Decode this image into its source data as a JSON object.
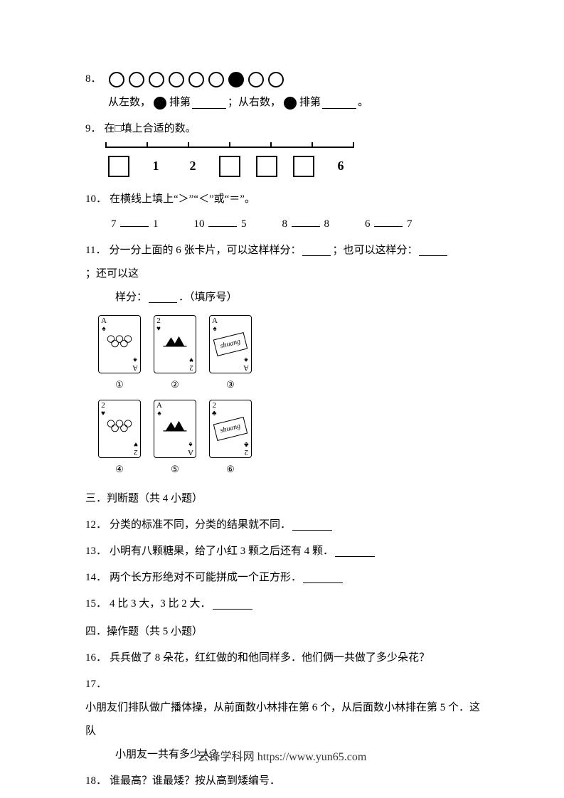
{
  "q8": {
    "num": "8．",
    "circles": [
      false,
      false,
      false,
      false,
      false,
      false,
      true,
      false,
      false
    ],
    "line2_a": "从左数，",
    "line2_b": " 排第 ",
    "line2_c": "；从右数，",
    "line2_d": " 排第 ",
    "line2_e": "。"
  },
  "q9": {
    "num": "9．",
    "text": "在□填上合适的数。",
    "cells": [
      {
        "type": "box",
        "val": ""
      },
      {
        "type": "label",
        "val": "1"
      },
      {
        "type": "label",
        "val": "2"
      },
      {
        "type": "box",
        "val": ""
      },
      {
        "type": "box",
        "val": ""
      },
      {
        "type": "box",
        "val": ""
      },
      {
        "type": "label",
        "val": "6"
      }
    ]
  },
  "q10": {
    "num": "10．",
    "text": "在横线上填上“＞”“＜”或“＝”。",
    "items": [
      {
        "l": "7",
        "r": "1"
      },
      {
        "l": "10",
        "r": "5"
      },
      {
        "l": "8",
        "r": "8"
      },
      {
        "l": "6",
        "r": "7"
      }
    ]
  },
  "q11": {
    "num": "11．",
    "line1_a": "分一分上面的 6 张卡片，可以这样样分：",
    "line1_b": "；也可以这样分：",
    "line1_c": "；还可以这",
    "line2_a": "样分：",
    "line2_b": "．（填序号）",
    "cards": [
      {
        "rank": "A",
        "suit": "♠",
        "kind": "rings",
        "idx": "①"
      },
      {
        "rank": "2",
        "suit": "♥",
        "kind": "mtn",
        "idx": "②"
      },
      {
        "rank": "A",
        "suit": "♠",
        "kind": "shuang",
        "idx": "③"
      },
      {
        "rank": "2",
        "suit": "♥",
        "kind": "rings",
        "idx": "④"
      },
      {
        "rank": "A",
        "suit": "♠",
        "kind": "mtn",
        "idx": "⑤"
      },
      {
        "rank": "2",
        "suit": "♣",
        "kind": "shuang",
        "idx": "⑥"
      }
    ],
    "shuang_label": "shuang"
  },
  "section3": {
    "title": "三．判断题（共 4 小题）"
  },
  "q12": {
    "num": "12．",
    "text": "分类的标准不同，分类的结果就不同．"
  },
  "q13": {
    "num": "13．",
    "text": "小明有八颗糖果，给了小红 3 颗之后还有 4 颗．"
  },
  "q14": {
    "num": "14．",
    "text": "两个长方形绝对不可能拼成一个正方形．"
  },
  "q15": {
    "num": "15．",
    "text": "4 比 3 大，3 比 2 大．"
  },
  "section4": {
    "title": "四．操作题（共 5 小题）"
  },
  "q16": {
    "num": "16．",
    "text": "兵兵做了 8 朵花，红红做的和他同样多．他们俩一共做了多少朵花？"
  },
  "q17": {
    "num": "17．",
    "text1": "小朋友们排队做广播体操，从前面数小林排在第 6 个，从后面数小林排在第 5 个．这队",
    "text2": "小朋友一共有多少人？"
  },
  "q18": {
    "num": "18．",
    "text": "谁最高？谁最矮？按从高到矮编号．"
  },
  "footer": {
    "site": "云锋学科网",
    "url": "https://www.yun65.com"
  },
  "colors": {
    "text": "#000000",
    "background": "#ffffff",
    "border": "#000000"
  },
  "font": {
    "family": "SimSun",
    "size_pt": 11
  }
}
